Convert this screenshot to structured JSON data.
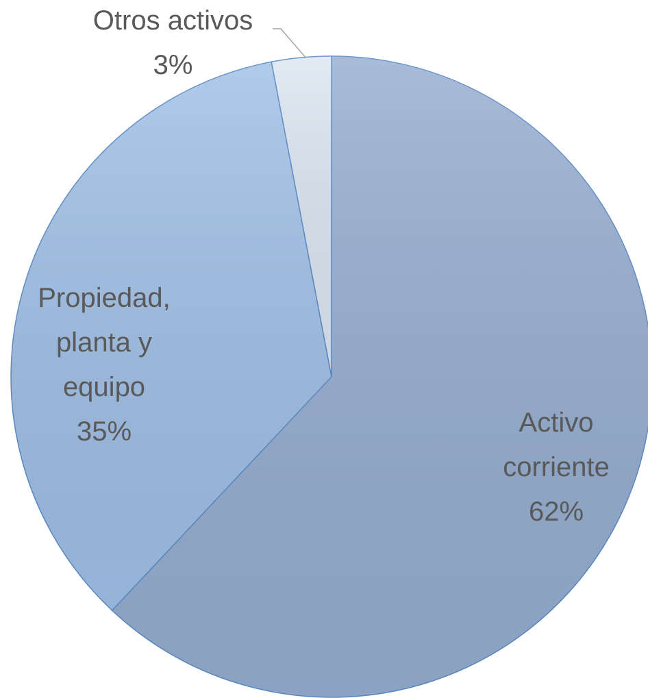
{
  "chart_data": {
    "type": "pie",
    "categories": [
      "Activo corriente",
      "Propiedad, planta y equipo",
      "Otros activos"
    ],
    "values": [
      62,
      35,
      3
    ],
    "value_labels": [
      "62%",
      "35%",
      "3%"
    ],
    "colors": [
      "#95add0",
      "#9fbfe6",
      "#dce6f2"
    ]
  }
}
